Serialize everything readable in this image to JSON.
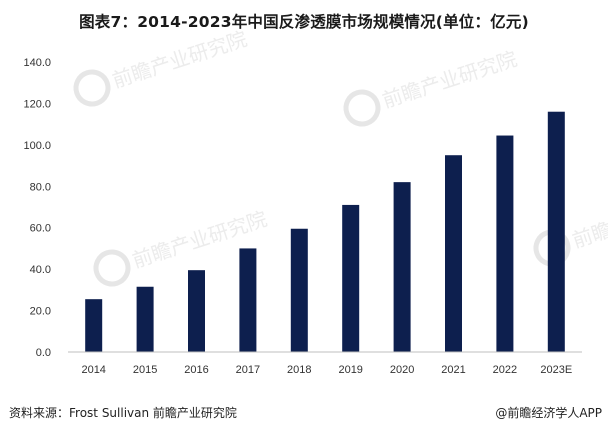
{
  "chart_data": {
    "type": "bar",
    "title": "图表7：2014-2023年中国反渗透膜市场规模情况(单位：亿元)",
    "categories": [
      "2014",
      "2015",
      "2016",
      "2017",
      "2018",
      "2019",
      "2020",
      "2021",
      "2022",
      "2023E"
    ],
    "values": [
      25.5,
      31.5,
      39.5,
      50.0,
      59.5,
      71.0,
      82.0,
      95.0,
      104.5,
      116.0
    ],
    "ylim": [
      0,
      140
    ],
    "y_ticks": [
      "0.0",
      "20.0",
      "40.0",
      "60.0",
      "80.0",
      "100.0",
      "120.0",
      "140.0"
    ],
    "xlabel": "",
    "ylabel": "",
    "grid": false,
    "legend": "none",
    "bar_color": "#0d1f4e"
  },
  "footer": {
    "source": "资料来源：Frost Sullivan 前瞻产业研究院",
    "credit": "@前瞻经济学人APP"
  },
  "watermark": {
    "name": "前瞻产业研究院"
  }
}
